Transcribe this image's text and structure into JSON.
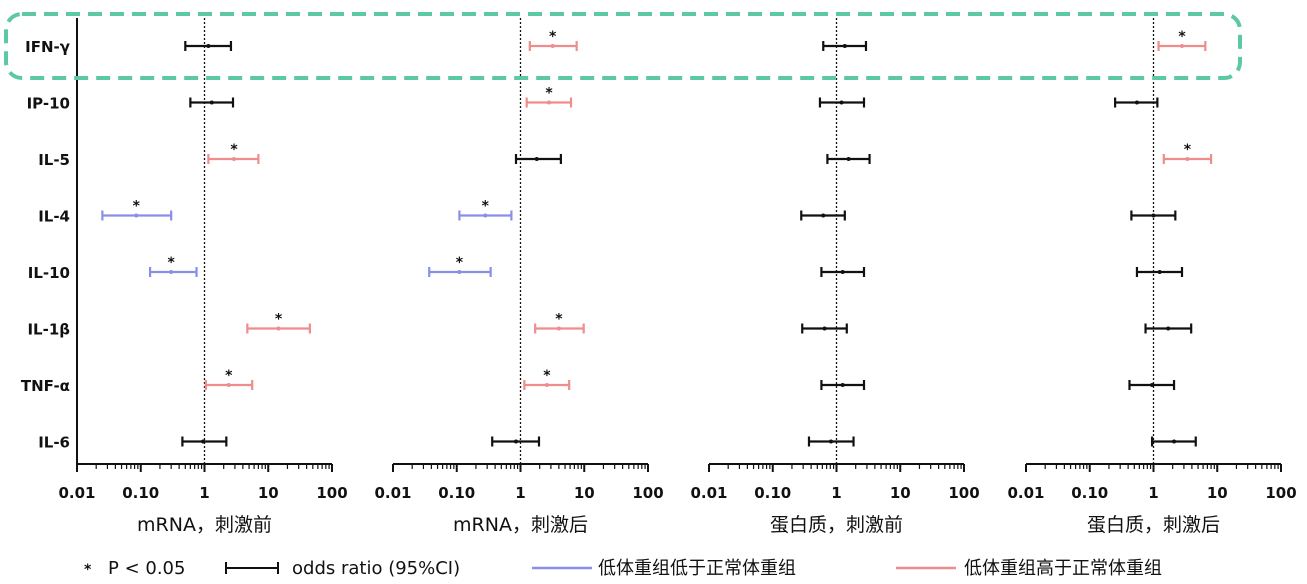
{
  "colors": {
    "low": "#8a8fe6",
    "high": "#ef8c8c",
    "ns": "#111111",
    "highlight": "#5cc9a4"
  },
  "legend": {
    "star_symbol": "*",
    "star_label": "P < 0.05",
    "ci_label": "odds ratio (95%CI)",
    "low_label": "低体重组低于正常体重组",
    "high_label": "低体重组高于正常体重组"
  },
  "chart_data": {
    "type": "forest",
    "rows": [
      "IFN-γ",
      "IP-10",
      "IL-5",
      "IL-4",
      "IL-10",
      "IL-1β",
      "TNF-α",
      "IL-6"
    ],
    "highlighted_row": "IFN-γ",
    "x_scale": "log",
    "x_ticks": [
      "0.01",
      "0.10",
      "1",
      "10",
      "100"
    ],
    "x_tick_values": [
      0.01,
      0.1,
      1,
      10,
      100
    ],
    "reference_line": 1,
    "panels": [
      {
        "xlabel": "mRNA，刺激前",
        "estimates": [
          {
            "row": "IFN-γ",
            "or": 1.15,
            "lo": 0.5,
            "hi": 2.6,
            "group": "ns",
            "sig": false
          },
          {
            "row": "IP-10",
            "or": 1.3,
            "lo": 0.6,
            "hi": 2.8,
            "group": "ns",
            "sig": false
          },
          {
            "row": "IL-5",
            "or": 2.9,
            "lo": 1.15,
            "hi": 7.0,
            "group": "high",
            "sig": true
          },
          {
            "row": "IL-4",
            "or": 0.085,
            "lo": 0.025,
            "hi": 0.3,
            "group": "low",
            "sig": true
          },
          {
            "row": "IL-10",
            "or": 0.3,
            "lo": 0.14,
            "hi": 0.75,
            "group": "low",
            "sig": true
          },
          {
            "row": "IL-1β",
            "or": 14.5,
            "lo": 4.7,
            "hi": 45.0,
            "group": "high",
            "sig": true
          },
          {
            "row": "TNF-α",
            "or": 2.4,
            "lo": 1.05,
            "hi": 5.6,
            "group": "high",
            "sig": true
          },
          {
            "row": "IL-6",
            "or": 0.95,
            "lo": 0.45,
            "hi": 2.2,
            "group": "ns",
            "sig": false
          }
        ]
      },
      {
        "xlabel": "mRNA，刺激后",
        "estimates": [
          {
            "row": "IFN-γ",
            "or": 3.2,
            "lo": 1.4,
            "hi": 7.6,
            "group": "high",
            "sig": true
          },
          {
            "row": "IP-10",
            "or": 2.8,
            "lo": 1.25,
            "hi": 6.2,
            "group": "high",
            "sig": true
          },
          {
            "row": "IL-5",
            "or": 1.8,
            "lo": 0.85,
            "hi": 4.3,
            "group": "ns",
            "sig": false
          },
          {
            "row": "IL-4",
            "or": 0.28,
            "lo": 0.11,
            "hi": 0.72,
            "group": "low",
            "sig": true
          },
          {
            "row": "IL-10",
            "or": 0.11,
            "lo": 0.037,
            "hi": 0.34,
            "group": "low",
            "sig": true
          },
          {
            "row": "IL-1β",
            "or": 4.0,
            "lo": 1.7,
            "hi": 9.8,
            "group": "high",
            "sig": true
          },
          {
            "row": "TNF-α",
            "or": 2.6,
            "lo": 1.15,
            "hi": 5.8,
            "group": "high",
            "sig": true
          },
          {
            "row": "IL-6",
            "or": 0.85,
            "lo": 0.36,
            "hi": 1.95,
            "group": "ns",
            "sig": false
          }
        ]
      },
      {
        "xlabel": "蛋白质，刺激前",
        "estimates": [
          {
            "row": "IFN-γ",
            "or": 1.35,
            "lo": 0.62,
            "hi": 2.9,
            "group": "ns",
            "sig": false
          },
          {
            "row": "IP-10",
            "or": 1.2,
            "lo": 0.55,
            "hi": 2.7,
            "group": "ns",
            "sig": false
          },
          {
            "row": "IL-5",
            "or": 1.55,
            "lo": 0.72,
            "hi": 3.3,
            "group": "ns",
            "sig": false
          },
          {
            "row": "IL-4",
            "or": 0.62,
            "lo": 0.28,
            "hi": 1.35,
            "group": "ns",
            "sig": false
          },
          {
            "row": "IL-10",
            "or": 1.25,
            "lo": 0.58,
            "hi": 2.7,
            "group": "ns",
            "sig": false
          },
          {
            "row": "IL-1β",
            "or": 0.65,
            "lo": 0.29,
            "hi": 1.45,
            "group": "ns",
            "sig": false
          },
          {
            "row": "TNF-α",
            "or": 1.25,
            "lo": 0.58,
            "hi": 2.7,
            "group": "ns",
            "sig": false
          },
          {
            "row": "IL-6",
            "or": 0.82,
            "lo": 0.37,
            "hi": 1.85,
            "group": "ns",
            "sig": false
          }
        ]
      },
      {
        "xlabel": "蛋白质，刺激后",
        "estimates": [
          {
            "row": "IFN-γ",
            "or": 2.8,
            "lo": 1.2,
            "hi": 6.5,
            "group": "high",
            "sig": true
          },
          {
            "row": "IP-10",
            "or": 0.55,
            "lo": 0.25,
            "hi": 1.15,
            "group": "ns",
            "sig": false
          },
          {
            "row": "IL-5",
            "or": 3.4,
            "lo": 1.45,
            "hi": 8.0,
            "group": "high",
            "sig": true
          },
          {
            "row": "IL-4",
            "or": 1.0,
            "lo": 0.45,
            "hi": 2.2,
            "group": "ns",
            "sig": false
          },
          {
            "row": "IL-10",
            "or": 1.25,
            "lo": 0.55,
            "hi": 2.8,
            "group": "ns",
            "sig": false
          },
          {
            "row": "IL-1β",
            "or": 1.7,
            "lo": 0.75,
            "hi": 3.9,
            "group": "ns",
            "sig": false
          },
          {
            "row": "TNF-α",
            "or": 0.95,
            "lo": 0.42,
            "hi": 2.1,
            "group": "ns",
            "sig": false
          },
          {
            "row": "IL-6",
            "or": 2.1,
            "lo": 0.95,
            "hi": 4.6,
            "group": "ns",
            "sig": false
          }
        ]
      }
    ]
  }
}
